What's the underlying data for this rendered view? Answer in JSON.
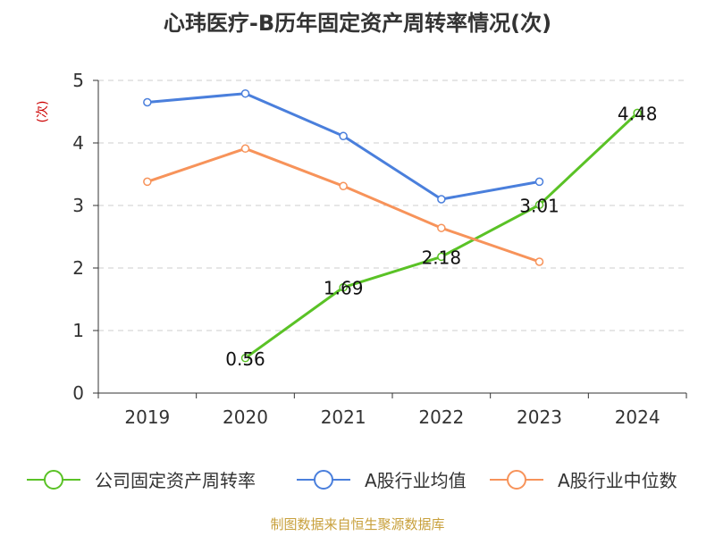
{
  "chart_data": {
    "type": "line",
    "title": "心玮医疗-B历年固定资产周转率情况(次)",
    "ylabel": "(次)",
    "xlabel": "",
    "categories": [
      "2019",
      "2020",
      "2021",
      "2022",
      "2023",
      "2024"
    ],
    "ylim": [
      0,
      5
    ],
    "yticks": [
      0,
      1,
      2,
      3,
      4,
      5
    ],
    "grid": true,
    "legend_position": "bottom",
    "series": [
      {
        "name": "公司固定资产周转率",
        "color": "#5ac226",
        "values": [
          null,
          0.56,
          1.69,
          2.18,
          3.01,
          4.48
        ],
        "labels": [
          "",
          "0.56",
          "1.69",
          "2.18",
          "3.01",
          "4.48"
        ]
      },
      {
        "name": "A股行业均值",
        "color": "#4a7fdc",
        "values": [
          4.65,
          4.79,
          4.11,
          3.1,
          3.38,
          null
        ]
      },
      {
        "name": "A股行业中位数",
        "color": "#f7935a",
        "values": [
          3.38,
          3.91,
          3.31,
          2.64,
          2.1,
          null
        ]
      }
    ],
    "source": "制图数据来自恒生聚源数据库",
    "ylabel_color": "#cc0000",
    "source_color": "#c8a03c"
  }
}
